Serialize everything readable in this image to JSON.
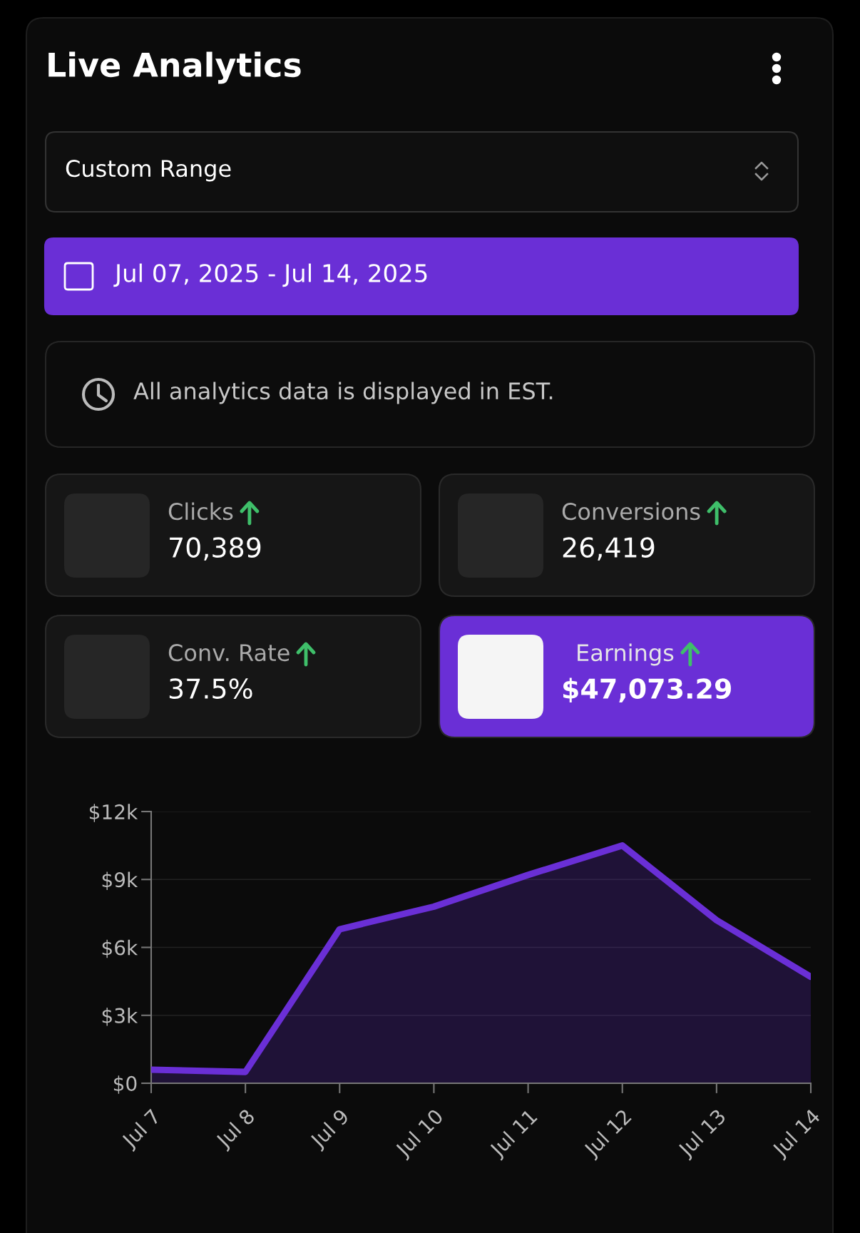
{
  "chart_data": [
    {
      "type": "other",
      "title": "Live Analytics",
      "annotations": [
        "Custom Range",
        "Jul 07, 2025 - Jul 14, 2025",
        "All analytics data is displayed in EST.",
        "Clicks",
        "70,389",
        "Conversions",
        "26,419",
        "Conv. Rate",
        "37.5%",
        "Earnings",
        "$47,073.29"
      ]
    },
    {
      "type": "area",
      "categories": [
        "Jul 7",
        "Jul 8",
        "Jul 9",
        "Jul 10",
        "Jul 11",
        "Jul 12",
        "Jul 13",
        "Jul 14"
      ],
      "series": [
        {
          "color": "#6a2fd6",
          "values": [
            600,
            500,
            6800,
            7800,
            9200,
            10500,
            7200,
            4700
          ]
        }
      ],
      "ylim": [
        0,
        12000
      ],
      "yticks": [
        {
          "value": 0,
          "label": "$0"
        },
        {
          "value": 3000,
          "label": "$3k"
        },
        {
          "value": 6000,
          "label": "$6k"
        },
        {
          "value": 9000,
          "label": "$9k"
        },
        {
          "value": 12000,
          "label": "$12k"
        }
      ],
      "grid": "y"
    }
  ]
}
